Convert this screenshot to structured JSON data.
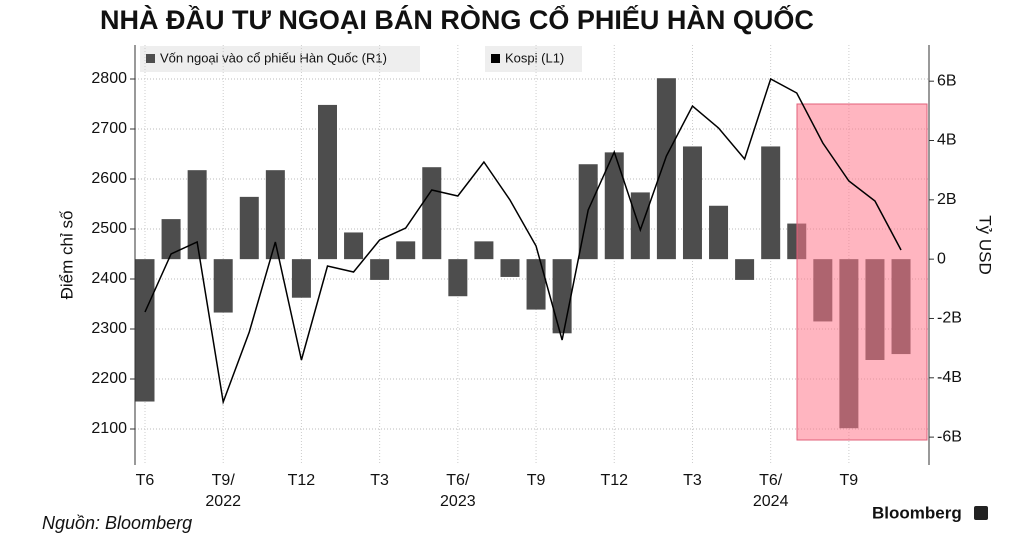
{
  "chart_data": {
    "type": "bar",
    "title": "NHÀ ĐẦU TƯ NGOẠI BÁN RÒNG CỔ PHIẾU HÀN QUỐC",
    "source": "Nguồn: Bloomberg",
    "brand": "Bloomberg",
    "ylabel": "Điểm chỉ số",
    "y2label": "Tỷ USD",
    "categories": [
      "T6",
      null,
      null,
      "T9/\n2022",
      null,
      null,
      "T12",
      null,
      null,
      "T3",
      null,
      null,
      "T6/\n2023",
      null,
      null,
      "T9",
      null,
      null,
      "T12",
      null,
      null,
      "T3",
      null,
      null,
      "T6/\n2024",
      null,
      null,
      "T9",
      null,
      null
    ],
    "series": [
      {
        "name": "Vốn ngoại vào cổ phiếu Hàn Quốc (R1)",
        "type": "bar",
        "axis": "y2",
        "color": "#4d4d4d",
        "values": [
          -4.8,
          1.35,
          3.0,
          -1.8,
          2.1,
          3.0,
          -1.3,
          5.2,
          0.9,
          -0.7,
          0.6,
          3.1,
          -1.25,
          0.6,
          -0.6,
          -1.7,
          -2.5,
          3.2,
          3.6,
          2.25,
          6.1,
          3.8,
          1.8,
          -0.7,
          3.8,
          1.2,
          -2.1,
          -5.7,
          -3.4,
          -3.2
        ]
      },
      {
        "name": "Kospi (L1)",
        "type": "line",
        "color": "#000000",
        "values": [
          2334,
          2450,
          2474,
          2154,
          2294,
          2474,
          2238,
          2426,
          2414,
          2478,
          2502,
          2578,
          2566,
          2634,
          2558,
          2466,
          2278,
          2538,
          2654,
          2498,
          2646,
          2746,
          2702,
          2640,
          2800,
          2772,
          2672,
          2596,
          2556,
          2458
        ]
      }
    ],
    "ylim": [
      2028,
      2868
    ],
    "yticks": [
      2100,
      2200,
      2300,
      2400,
      2500,
      2600,
      2700,
      2800
    ],
    "y2lim": [
      -6.94,
      7.22
    ],
    "y2ticks": [
      {
        "value": -6,
        "label": "-6B"
      },
      {
        "value": -4,
        "label": "-4B"
      },
      {
        "value": -2,
        "label": "-2B"
      },
      0,
      {
        "value": 2,
        "label": "2B"
      },
      {
        "value": 4,
        "label": "4B"
      },
      {
        "value": 6,
        "label": "6B"
      }
    ],
    "grid": true
  }
}
